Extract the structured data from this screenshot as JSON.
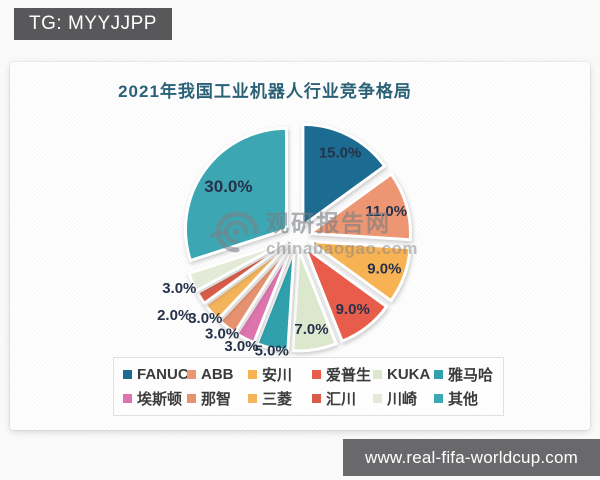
{
  "overlays": {
    "tg_badge": "TG: MYYJJPP",
    "footer_url": "www.real-fifa-worldcup.com",
    "watermark": {
      "name": "观研报告网",
      "domain": "chinabaogao.com",
      "logo": "swirl-logo"
    }
  },
  "chart_data": {
    "type": "pie",
    "title": "2021年我国工业机器人行业竞争格局",
    "legend_position": "bottom",
    "exploded": true,
    "slices": [
      {
        "name": "FANUC",
        "value": 15.0,
        "label": "15.0%",
        "color": "#1C6B90"
      },
      {
        "name": "ABB",
        "value": 11.0,
        "label": "11.0%",
        "color": "#EC9673"
      },
      {
        "name": "安川",
        "value": 9.0,
        "label": "9.0%",
        "color": "#F7B254"
      },
      {
        "name": "爱普生",
        "value": 9.0,
        "label": "9.0%",
        "color": "#E85C4B"
      },
      {
        "name": "KUKA",
        "value": 7.0,
        "label": "7.0%",
        "color": "#DCE8CE"
      },
      {
        "name": "雅马哈",
        "value": 5.0,
        "label": "5.0%",
        "color": "#2FA0AC"
      },
      {
        "name": "埃斯顿",
        "value": 3.0,
        "label": "3.0%",
        "color": "#DD74AD"
      },
      {
        "name": "那智",
        "value": 3.0,
        "label": "3.0%",
        "color": "#E4926F"
      },
      {
        "name": "三菱",
        "value": 3.0,
        "label": "3.0%",
        "color": "#F4B45C"
      },
      {
        "name": "汇川",
        "value": 2.0,
        "label": "2.0%",
        "color": "#D95C49"
      },
      {
        "name": "川崎",
        "value": 3.0,
        "label": "3.0%",
        "color": "#E3EBD8"
      },
      {
        "name": "其他",
        "value": 30.0,
        "label": "30.0%",
        "color": "#3CA6B2"
      }
    ]
  }
}
